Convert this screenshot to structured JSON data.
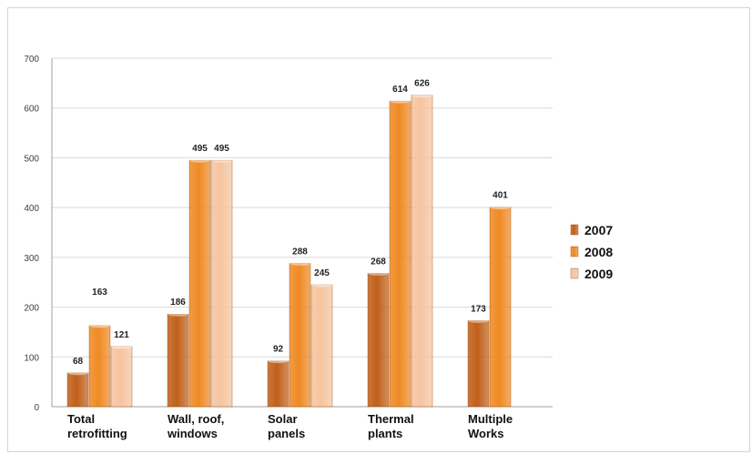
{
  "chart_data": {
    "type": "bar",
    "categories": [
      [
        "Total",
        "retrofitting"
      ],
      [
        "Wall, roof,",
        "windows"
      ],
      [
        "Solar",
        "panels"
      ],
      [
        "Thermal",
        "plants"
      ],
      [
        "Multiple",
        "Works"
      ]
    ],
    "series": [
      {
        "name": "2007",
        "values": [
          68,
          186,
          92,
          268,
          173
        ],
        "color": "#c0601a"
      },
      {
        "name": "2008",
        "values": [
          163,
          495,
          288,
          614,
          401
        ],
        "color": "#ef8a24"
      },
      {
        "name": "2009",
        "values": [
          121,
          495,
          245,
          626,
          null
        ],
        "color": "#f6c4a0"
      }
    ],
    "yticks": [
      0,
      100,
      200,
      300,
      400,
      500,
      600,
      700
    ],
    "ylim": [
      0,
      700
    ],
    "grid": true,
    "legend_position": "right",
    "title": "",
    "xlabel": "",
    "ylabel": ""
  }
}
